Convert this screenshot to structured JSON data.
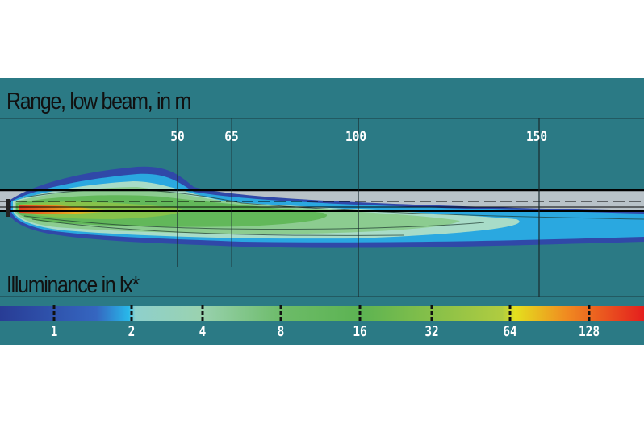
{
  "range_title": "Range, low beam, in m",
  "illuminance_title": "Illuminance in lx*",
  "distance_markers": [
    {
      "label": "50",
      "value": 50
    },
    {
      "label": "65",
      "value": 65
    },
    {
      "label": "100",
      "value": 100
    },
    {
      "label": "150",
      "value": 150
    }
  ],
  "scale_labels": [
    "1",
    "2",
    "4",
    "8",
    "16",
    "32",
    "64",
    "128"
  ],
  "colors": {
    "background": "#2b7a85",
    "road": "#b8c2c8",
    "scale": [
      "#2a3f9a",
      "#3a7fd0",
      "#2ab8e8",
      "#9ed6c8",
      "#8cc88a",
      "#5eb455",
      "#9cc640",
      "#e8e020",
      "#f0901e",
      "#e02020"
    ]
  }
}
